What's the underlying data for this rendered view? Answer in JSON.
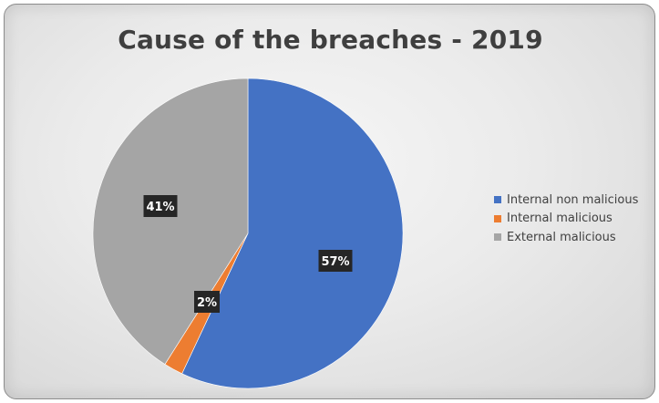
{
  "chart_data": {
    "type": "pie",
    "title": "Cause of the breaches - 2019",
    "start_angle_deg": 0,
    "direction": "clockwise",
    "slices": [
      {
        "label": "Internal non malicious",
        "value": 57,
        "data_label": "57%",
        "color": "#4472C4"
      },
      {
        "label": "Internal malicious",
        "value": 2,
        "data_label": "2%",
        "color": "#ED7D31"
      },
      {
        "label": "External malicious",
        "value": 41,
        "data_label": "41%",
        "color": "#A5A5A5"
      }
    ],
    "legend_position": "right",
    "data_label_style": {
      "background": "#262626",
      "color": "#ffffff"
    }
  }
}
